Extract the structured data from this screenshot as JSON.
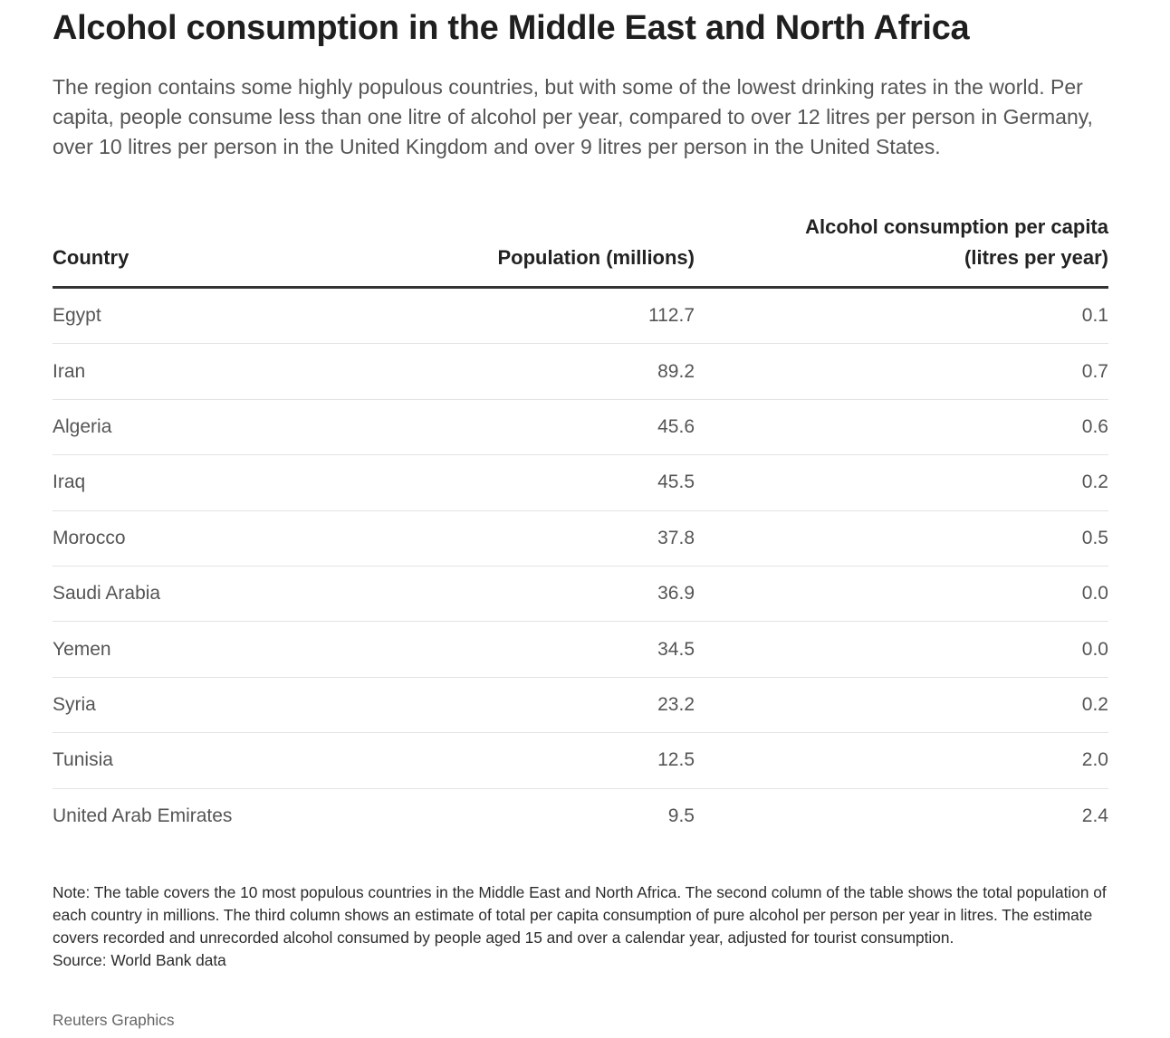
{
  "title": "Alcohol consumption in the Middle East and North Africa",
  "subtitle": "The region contains some highly populous countries, but with some of the lowest drinking rates in the world. Per capita, people consume less than one litre of alcohol per year, compared to over 12 litres per person in Germany, over 10 litres per person in the United Kingdom and over 9 litres per person in the United States.",
  "columns": {
    "country": "Country",
    "population": "Population (millions)",
    "alcohol_line1": "Alcohol consumption per capita",
    "alcohol_line2": "(litres per year)"
  },
  "chart_data": {
    "type": "table",
    "title": "Alcohol consumption in the Middle East and North Africa",
    "columns": [
      "Country",
      "Population (millions)",
      "Alcohol consumption per capita (litres per year)"
    ],
    "rows": [
      {
        "country": "Egypt",
        "population": "112.7",
        "alcohol": "0.1"
      },
      {
        "country": "Iran",
        "population": "89.2",
        "alcohol": "0.7"
      },
      {
        "country": "Algeria",
        "population": "45.6",
        "alcohol": "0.6"
      },
      {
        "country": "Iraq",
        "population": "45.5",
        "alcohol": "0.2"
      },
      {
        "country": "Morocco",
        "population": "37.8",
        "alcohol": "0.5"
      },
      {
        "country": "Saudi Arabia",
        "population": "36.9",
        "alcohol": "0.0"
      },
      {
        "country": "Yemen",
        "population": "34.5",
        "alcohol": "0.0"
      },
      {
        "country": "Syria",
        "population": "23.2",
        "alcohol": "0.2"
      },
      {
        "country": "Tunisia",
        "population": "12.5",
        "alcohol": "2.0"
      },
      {
        "country": "United Arab Emirates",
        "population": "9.5",
        "alcohol": "2.4"
      }
    ]
  },
  "note": "Note: The table covers the 10 most populous countries in the Middle East and North Africa. The second column of the table shows the total population of each country in millions. The third column shows an estimate of total per capita consumption of pure alcohol per person per year in litres. The estimate covers recorded and unrecorded alcohol consumed by people aged 15 and over a calendar year, adjusted for tourist consumption.",
  "source": "Source: World Bank data",
  "credit": "Reuters Graphics"
}
